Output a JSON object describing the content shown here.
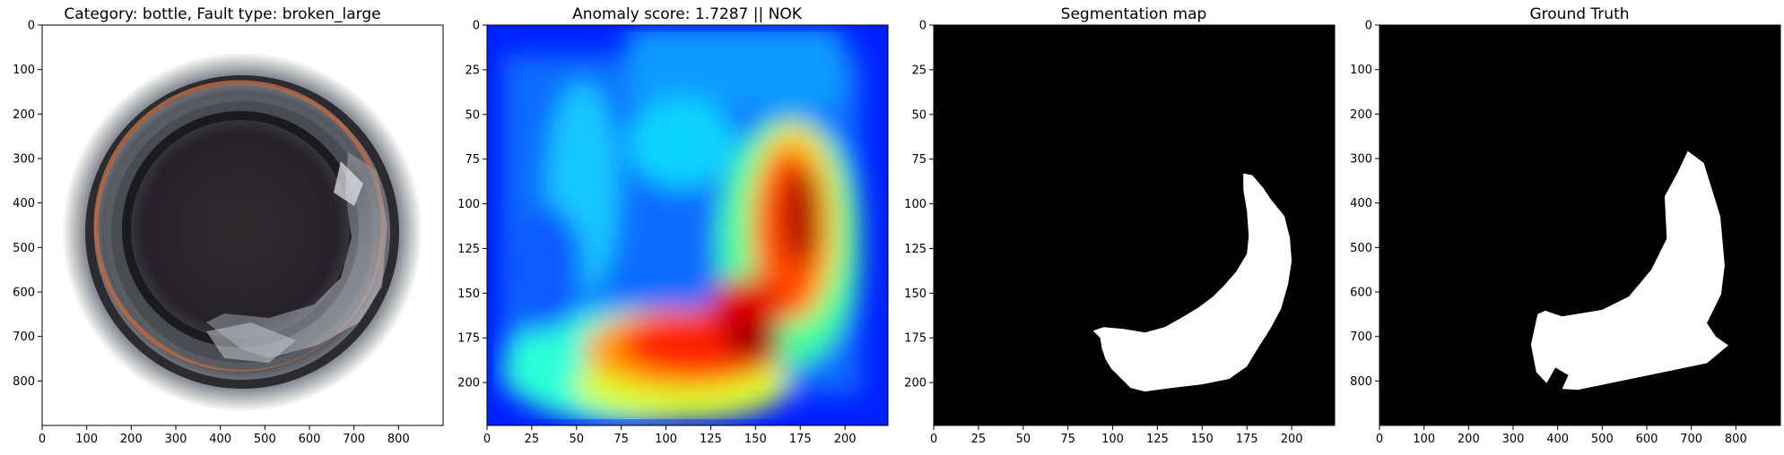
{
  "panels": [
    {
      "title": "Category: bottle, Fault type: broken_large",
      "kind": "bottle-photo",
      "xlim": [
        0,
        900
      ],
      "ylim": [
        900,
        0
      ],
      "xticks": [
        0,
        100,
        200,
        300,
        400,
        500,
        600,
        700,
        800
      ],
      "yticks": [
        0,
        100,
        200,
        300,
        400,
        500,
        600,
        700,
        800
      ]
    },
    {
      "title": "Anomaly score: 1.7287 || NOK",
      "kind": "heatmap",
      "xlim": [
        0,
        224
      ],
      "ylim": [
        224,
        0
      ],
      "xticks": [
        0,
        25,
        50,
        75,
        100,
        125,
        150,
        175,
        200
      ],
      "yticks": [
        0,
        25,
        50,
        75,
        100,
        125,
        150,
        175,
        200
      ],
      "colormap": "jet"
    },
    {
      "title": "Segmentation map",
      "kind": "binary-mask",
      "xlim": [
        0,
        224
      ],
      "ylim": [
        224,
        0
      ],
      "xticks": [
        0,
        25,
        50,
        75,
        100,
        125,
        150,
        175,
        200
      ],
      "yticks": [
        0,
        25,
        50,
        75,
        100,
        125,
        150,
        175,
        200
      ],
      "mask_polygon": [
        [
          173,
          83
        ],
        [
          178,
          84
        ],
        [
          184,
          91
        ],
        [
          188,
          97
        ],
        [
          196,
          107
        ],
        [
          199,
          119
        ],
        [
          200,
          132
        ],
        [
          198,
          145
        ],
        [
          194,
          159
        ],
        [
          188,
          170
        ],
        [
          181,
          181
        ],
        [
          175,
          191
        ],
        [
          165,
          198
        ],
        [
          150,
          201
        ],
        [
          133,
          203
        ],
        [
          118,
          205
        ],
        [
          110,
          203
        ],
        [
          105,
          198
        ],
        [
          99,
          192
        ],
        [
          96,
          187
        ],
        [
          94,
          181
        ],
        [
          93,
          175
        ],
        [
          89,
          171
        ],
        [
          95,
          169
        ],
        [
          106,
          170
        ],
        [
          118,
          172
        ],
        [
          129,
          169
        ],
        [
          138,
          164
        ],
        [
          148,
          158
        ],
        [
          156,
          152
        ],
        [
          162,
          146
        ],
        [
          169,
          138
        ],
        [
          175,
          128
        ],
        [
          176,
          118
        ],
        [
          175,
          104
        ],
        [
          173,
          92
        ]
      ]
    },
    {
      "title": "Ground Truth",
      "kind": "binary-mask",
      "xlim": [
        0,
        900
      ],
      "ylim": [
        900,
        0
      ],
      "xticks": [
        0,
        100,
        200,
        300,
        400,
        500,
        600,
        700,
        800
      ],
      "yticks": [
        0,
        100,
        200,
        300,
        400,
        500,
        600,
        700,
        800
      ],
      "mask_polygon": [
        [
          692,
          283
        ],
        [
          728,
          310
        ],
        [
          765,
          430
        ],
        [
          775,
          540
        ],
        [
          767,
          605
        ],
        [
          735,
          670
        ],
        [
          755,
          700
        ],
        [
          783,
          720
        ],
        [
          735,
          760
        ],
        [
          445,
          820
        ],
        [
          410,
          818
        ],
        [
          424,
          787
        ],
        [
          395,
          770
        ],
        [
          375,
          805
        ],
        [
          352,
          780
        ],
        [
          340,
          718
        ],
        [
          355,
          650
        ],
        [
          372,
          642
        ],
        [
          410,
          655
        ],
        [
          500,
          640
        ],
        [
          560,
          610
        ],
        [
          610,
          550
        ],
        [
          645,
          480
        ],
        [
          640,
          385
        ],
        [
          670,
          330
        ]
      ]
    }
  ]
}
